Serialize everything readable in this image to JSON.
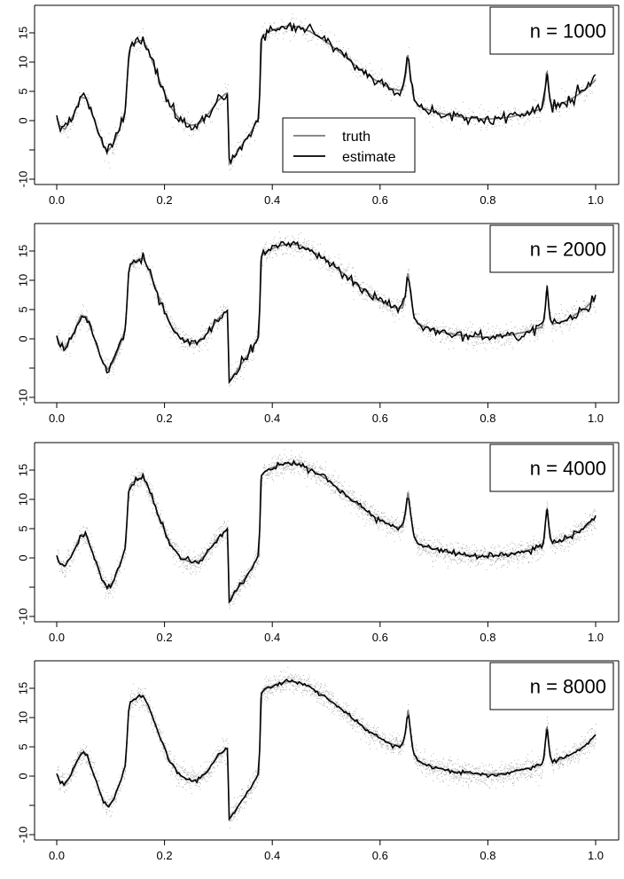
{
  "colors": {
    "truth": "#7a7a7a",
    "estimate": "#000000",
    "points": "#a8a8a8",
    "axis": "#000000"
  },
  "legend": {
    "position": "inside first panel, center",
    "items": [
      {
        "label": "truth",
        "color": "#7a7a7a"
      },
      {
        "label": "estimate",
        "color": "#000000"
      }
    ]
  },
  "chart_data": [
    {
      "type": "line",
      "label": "n = 1000",
      "n": 1000,
      "noise": 0.9,
      "estimate_wiggle": 1.1,
      "xlim": [
        0,
        1
      ],
      "ylim": [
        -11,
        19
      ],
      "x_ticks": [
        0.0,
        0.2,
        0.4,
        0.6,
        0.8,
        1.0
      ],
      "x_tick_labels": [
        "0.0",
        "0.2",
        "0.4",
        "0.6",
        "0.8",
        "1.0"
      ],
      "y_ticks": [
        -10,
        -5,
        0,
        5,
        10,
        15
      ],
      "y_tick_labels": [
        "-10",
        "",
        "0",
        "5",
        "10",
        "15"
      ],
      "grid": false,
      "series": [
        {
          "name": "truth",
          "role": "truth"
        },
        {
          "name": "estimate",
          "role": "estimate"
        }
      ]
    },
    {
      "type": "line",
      "label": "n = 2000",
      "n": 2000,
      "noise": 0.9,
      "estimate_wiggle": 0.8,
      "xlim": [
        0,
        1
      ],
      "ylim": [
        -11,
        19
      ],
      "x_ticks": [
        0.0,
        0.2,
        0.4,
        0.6,
        0.8,
        1.0
      ],
      "x_tick_labels": [
        "0.0",
        "0.2",
        "0.4",
        "0.6",
        "0.8",
        "1.0"
      ],
      "y_ticks": [
        -10,
        -5,
        0,
        5,
        10,
        15
      ],
      "y_tick_labels": [
        "-10",
        "",
        "0",
        "5",
        "10",
        "15"
      ],
      "grid": false,
      "series": [
        {
          "name": "truth",
          "role": "truth"
        },
        {
          "name": "estimate",
          "role": "estimate"
        }
      ]
    },
    {
      "type": "line",
      "label": "n = 4000",
      "n": 4000,
      "noise": 0.9,
      "estimate_wiggle": 0.55,
      "xlim": [
        0,
        1
      ],
      "ylim": [
        -11,
        19
      ],
      "x_ticks": [
        0.0,
        0.2,
        0.4,
        0.6,
        0.8,
        1.0
      ],
      "x_tick_labels": [
        "0.0",
        "0.2",
        "0.4",
        "0.6",
        "0.8",
        "1.0"
      ],
      "y_ticks": [
        -10,
        -5,
        0,
        5,
        10,
        15
      ],
      "y_tick_labels": [
        "-10",
        "",
        "0",
        "5",
        "10",
        "15"
      ],
      "grid": false,
      "series": [
        {
          "name": "truth",
          "role": "truth"
        },
        {
          "name": "estimate",
          "role": "estimate"
        }
      ]
    },
    {
      "type": "line",
      "label": "n = 8000",
      "n": 8000,
      "noise": 0.9,
      "estimate_wiggle": 0.35,
      "xlim": [
        0,
        1
      ],
      "ylim": [
        -11,
        19
      ],
      "x_ticks": [
        0.0,
        0.2,
        0.4,
        0.6,
        0.8,
        1.0
      ],
      "x_tick_labels": [
        "0.0",
        "0.2",
        "0.4",
        "0.6",
        "0.8",
        "1.0"
      ],
      "y_ticks": [
        -10,
        -5,
        0,
        5,
        10,
        15
      ],
      "y_tick_labels": [
        "-10",
        "",
        "0",
        "5",
        "10",
        "15"
      ],
      "grid": false,
      "series": [
        {
          "name": "truth",
          "role": "truth"
        },
        {
          "name": "estimate",
          "role": "estimate"
        }
      ]
    }
  ],
  "truth_curve": {
    "x": [
      0.0,
      0.005,
      0.015,
      0.03,
      0.045,
      0.055,
      0.07,
      0.085,
      0.095,
      0.105,
      0.118,
      0.128,
      0.133,
      0.136,
      0.15,
      0.16,
      0.17,
      0.19,
      0.21,
      0.23,
      0.25,
      0.265,
      0.28,
      0.3,
      0.312,
      0.318,
      0.319,
      0.322,
      0.33,
      0.345,
      0.36,
      0.372,
      0.376,
      0.378,
      0.38,
      0.383,
      0.39,
      0.41,
      0.43,
      0.45,
      0.47,
      0.5,
      0.53,
      0.56,
      0.59,
      0.62,
      0.635,
      0.642,
      0.648,
      0.652,
      0.656,
      0.662,
      0.67,
      0.7,
      0.73,
      0.76,
      0.79,
      0.81,
      0.84,
      0.87,
      0.9,
      0.905,
      0.909,
      0.912,
      0.915,
      0.92,
      0.94,
      0.96,
      0.98,
      0.995,
      1.0
    ],
    "y": [
      0.5,
      -0.8,
      -1.5,
      0.8,
      4.0,
      3.8,
      0.0,
      -4.0,
      -5.2,
      -4.0,
      -1.0,
      2.0,
      11.0,
      12.5,
      13.5,
      13.8,
      12.0,
      7.0,
      2.5,
      0.0,
      -0.8,
      -0.5,
      1.0,
      3.5,
      4.5,
      4.8,
      -7.5,
      -7.0,
      -6.0,
      -4.0,
      -2.0,
      0.0,
      0.5,
      13.0,
      14.0,
      14.5,
      15.0,
      15.8,
      16.2,
      16.0,
      15.2,
      13.5,
      11.3,
      9.0,
      7.0,
      5.5,
      5.2,
      5.3,
      8.0,
      11.5,
      8.0,
      4.0,
      2.5,
      1.5,
      0.9,
      0.5,
      0.3,
      0.3,
      0.6,
      1.2,
      2.0,
      3.5,
      9.0,
      7.0,
      3.5,
      2.5,
      3.0,
      4.0,
      5.2,
      6.5,
      7.0
    ]
  }
}
